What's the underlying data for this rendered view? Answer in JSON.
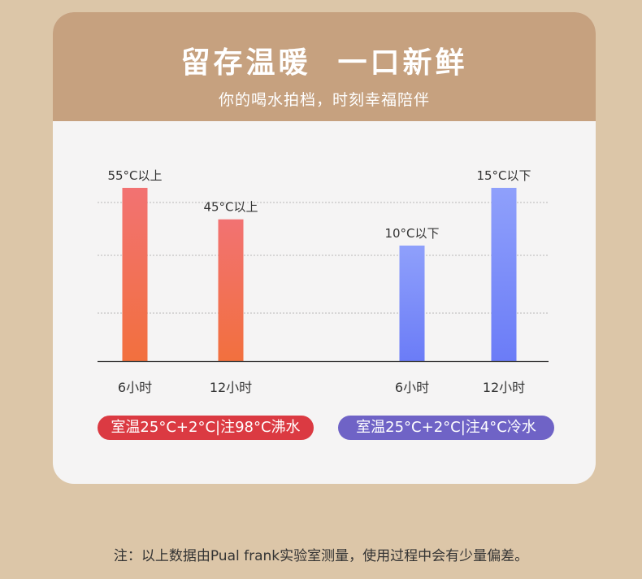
{
  "header": {
    "title": "留存温暖  一口新鲜",
    "subtitle": "你的喝水拍档，时刻幸福陪伴"
  },
  "chart_data": {
    "type": "bar",
    "categories": [
      "6小时",
      "12小时",
      "6小时",
      "12小时"
    ],
    "bars": [
      {
        "label": "55°C以上",
        "value": 55,
        "group": "hot"
      },
      {
        "label": "45°C以上",
        "value": 45,
        "group": "hot"
      },
      {
        "label": "10°C以下",
        "value": 10,
        "group": "cold"
      },
      {
        "label": "15°C以下",
        "value": 15,
        "group": "cold"
      }
    ],
    "groups": [
      {
        "id": "hot",
        "label": "室温25°C+2°C|注98°C沸水",
        "color_top": "#f27272",
        "color_bottom": "#f2703e",
        "pill_color": "#db3a42"
      },
      {
        "id": "cold",
        "label": "室温25°C+2°C|注4°C冷水",
        "color_top": "#8fa0fb",
        "color_bottom": "#6b7cf7",
        "pill_color": "#6f63c6"
      }
    ],
    "grid": true
  },
  "footnote": "注：以上数据由Pual frank实验室测量，使用过程中会有少量偏差。"
}
